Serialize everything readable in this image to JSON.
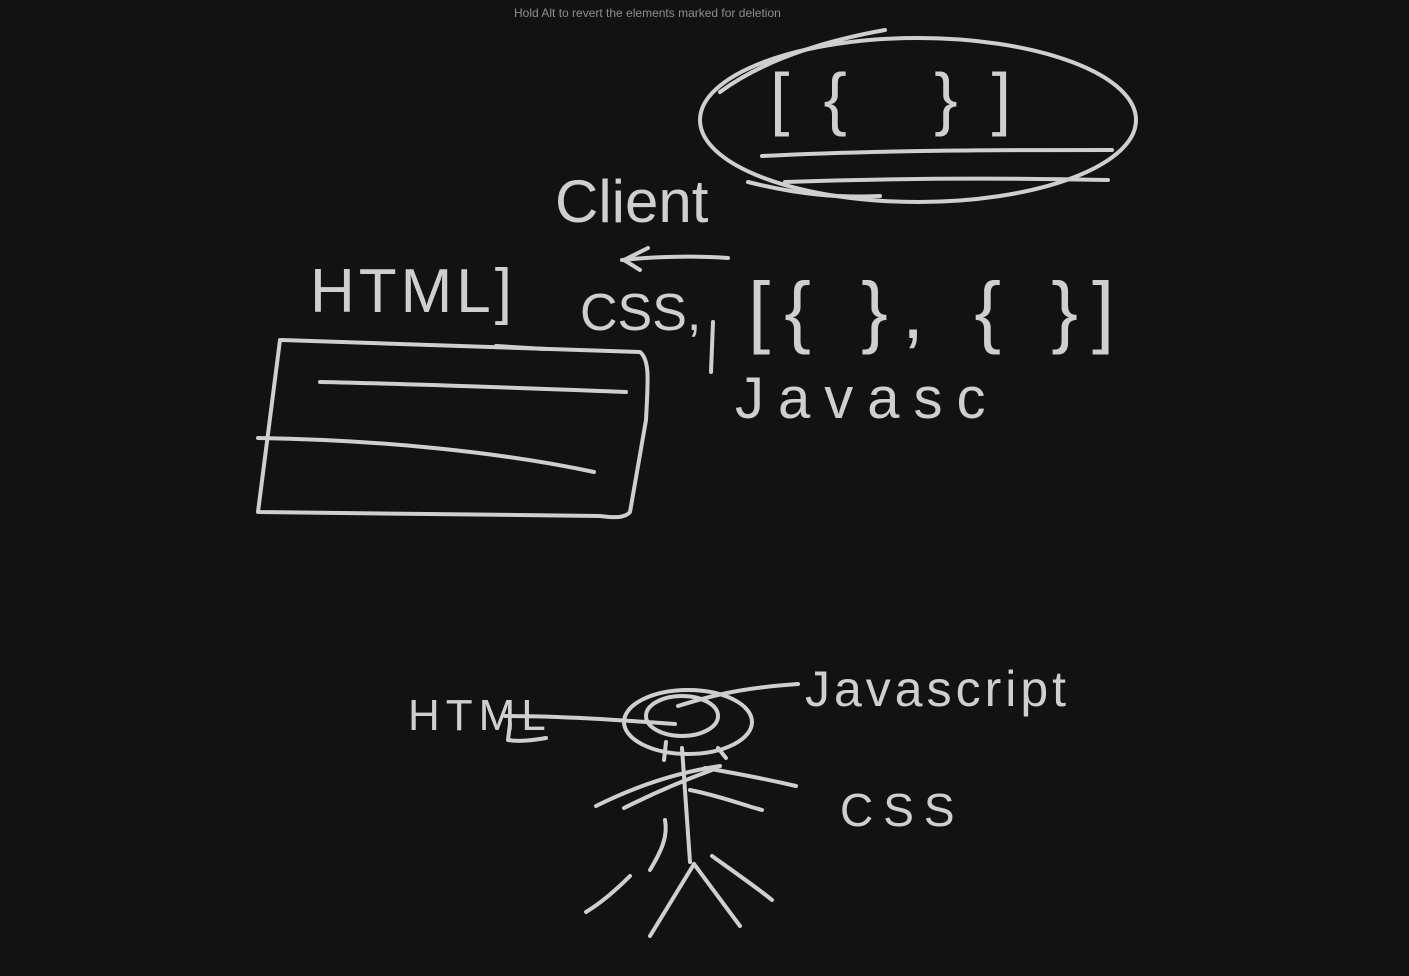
{
  "app": {
    "background_color": "#121212",
    "stroke_color": "#cfcfcf",
    "tool_hint": "Hold Alt to revert the elements marked for deletion"
  },
  "handwriting": {
    "client": "Client",
    "html_top": "HTML]",
    "css_top": "CSS,",
    "array_top": "[{ }, { }]",
    "javascript_top": "Javasc",
    "object_top": "[{ }]",
    "html_bottom": "HTML",
    "javascript_bottom": "Javascript",
    "css_bottom": "CSS"
  }
}
